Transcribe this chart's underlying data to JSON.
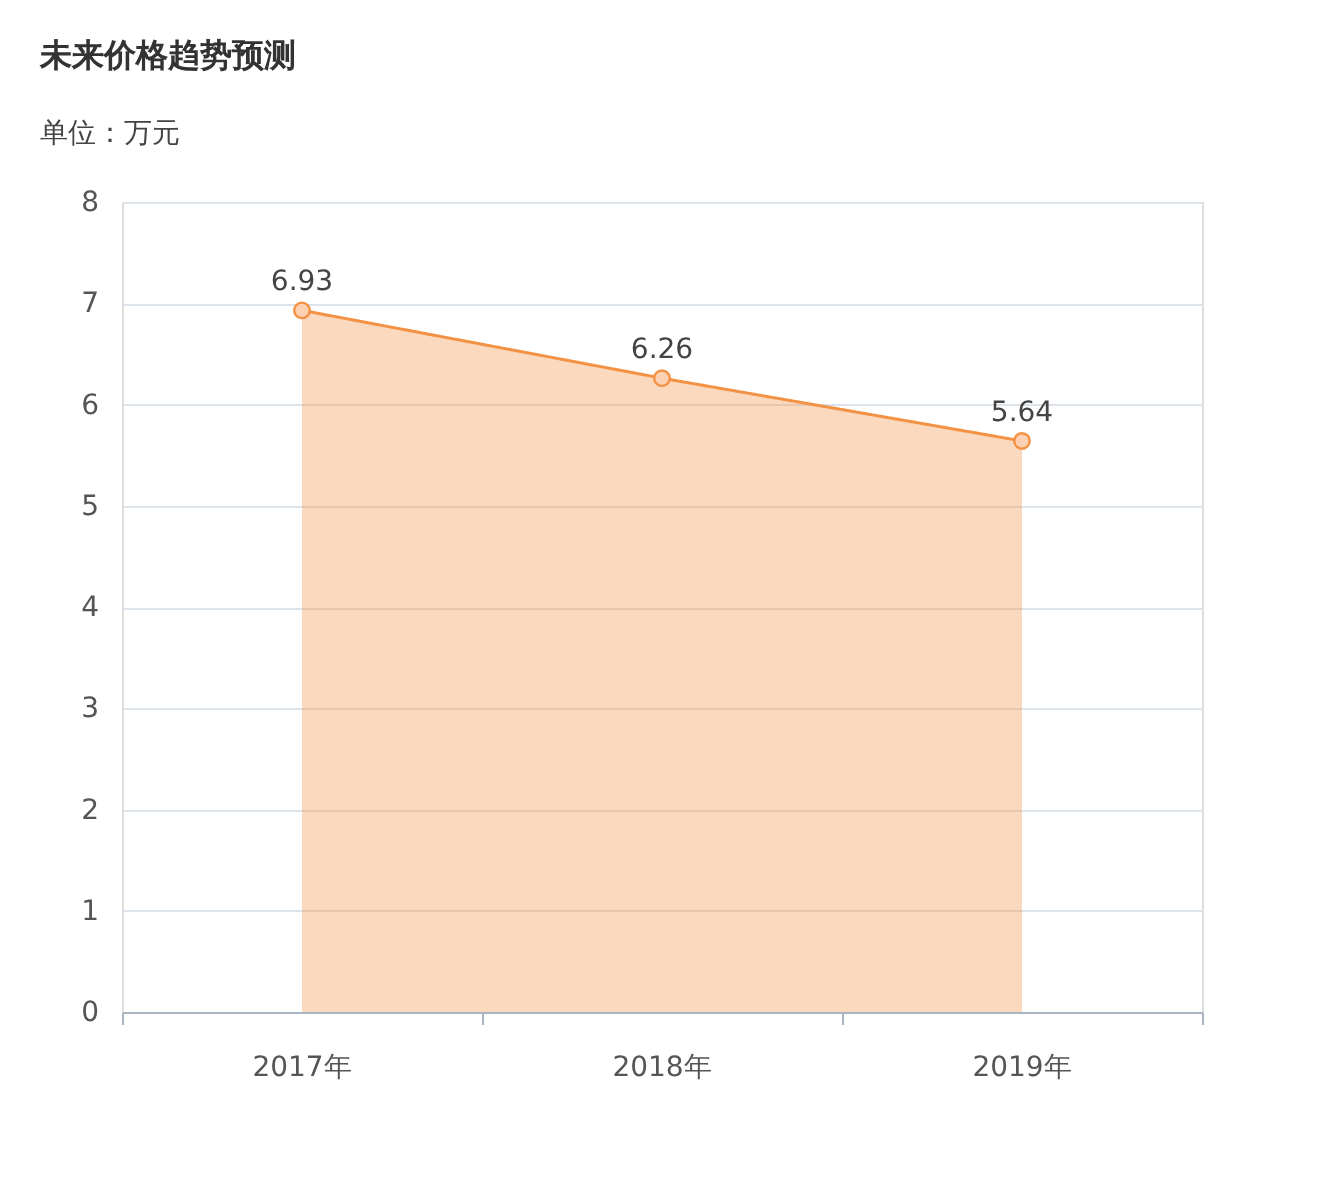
{
  "chart_data": {
    "type": "area",
    "title": "未来价格趋势预测",
    "subtitle": "单位：万元",
    "categories": [
      "2017年",
      "2018年",
      "2019年"
    ],
    "series": [
      {
        "color": "#f39244",
        "values": [
          6.93,
          6.26,
          5.64
        ]
      }
    ],
    "ylim": [
      0,
      8
    ],
    "yticks": [
      0,
      1,
      2,
      3,
      4,
      5,
      6,
      7,
      8
    ],
    "grid": "y",
    "marker": "circle",
    "data_labels": true
  }
}
